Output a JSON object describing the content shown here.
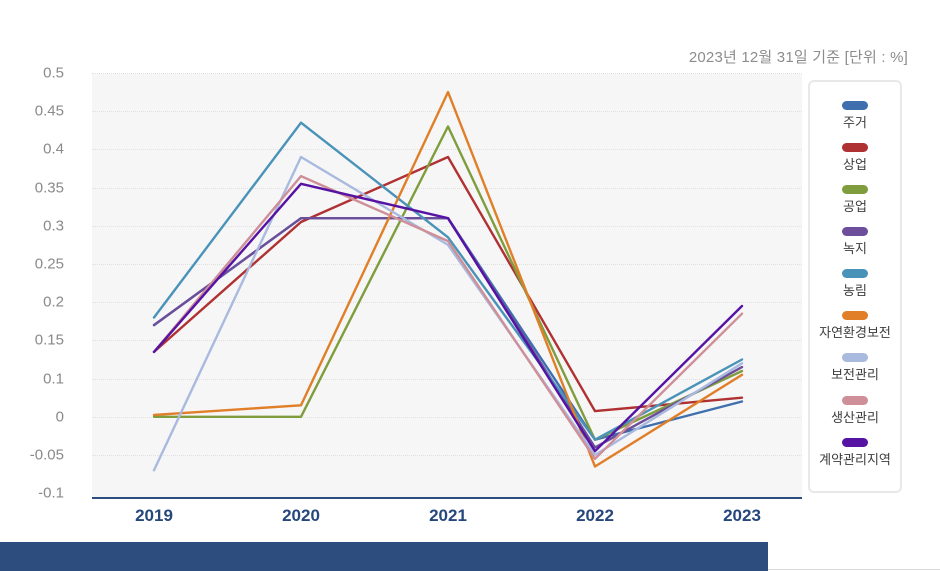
{
  "header": {
    "note": "2023년 12월 31일 기준  [단위 : %]"
  },
  "chart_data": {
    "type": "line",
    "x": [
      "2019",
      "2020",
      "2021",
      "2022",
      "2023"
    ],
    "y_tick_labels": [
      "0.5",
      "0.45",
      "0.4",
      "0.35",
      "0.3",
      "0.25",
      "0.2",
      "0.15",
      "0.1",
      "0",
      "-0.05",
      "-0.1"
    ],
    "series": [
      {
        "name": "주거",
        "color": "#3f6fad",
        "values": [
          0.17,
          0.31,
          0.31,
          -0.03,
          0.04
        ]
      },
      {
        "name": "상업",
        "color": "#b03132",
        "values": [
          0.135,
          0.305,
          0.39,
          0.015,
          0.05
        ]
      },
      {
        "name": "공업",
        "color": "#7f9d3d",
        "values": [
          0.0,
          0.0,
          0.43,
          -0.03,
          0.11
        ]
      },
      {
        "name": "녹지",
        "color": "#6c4e9b",
        "values": [
          0.17,
          0.31,
          0.31,
          -0.04,
          0.115
        ]
      },
      {
        "name": "농림",
        "color": "#4a93b8",
        "values": [
          0.18,
          0.435,
          0.285,
          -0.03,
          0.125
        ]
      },
      {
        "name": "자연환경보전",
        "color": "#e07f28",
        "values": [
          0.005,
          0.03,
          0.475,
          -0.065,
          0.105
        ]
      },
      {
        "name": "보전관리",
        "color": "#a9bade",
        "values": [
          -0.07,
          0.39,
          0.275,
          -0.05,
          0.12
        ]
      },
      {
        "name": "생산관리",
        "color": "#ce8f98",
        "values": [
          0.135,
          0.365,
          0.28,
          -0.055,
          0.185
        ]
      },
      {
        "name": "계약관리지역",
        "color": "#5613a3",
        "values": [
          0.135,
          0.355,
          0.31,
          -0.045,
          0.195
        ]
      }
    ],
    "legend_position": "right",
    "grid": "horizontal-dotted",
    "plot_bg": "#f6f6f7"
  },
  "colors": {
    "axis_line": "#2d4d80",
    "x_tick_label": "#26477c",
    "y_tick_label": "#8a8a8a",
    "note_text": "#8c8c8c",
    "gridline": "#e0e0e0",
    "legend_border": "#e8e8e8",
    "footer_bar": "#2e4d7f"
  }
}
